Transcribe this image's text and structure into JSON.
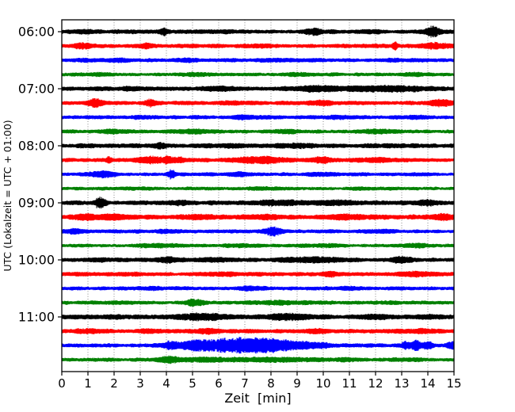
{
  "window": {
    "background": "#ffffff"
  },
  "chart_data": {
    "type": "line",
    "subtype": "seismogram-helicorder-dayplot",
    "title": "",
    "xlabel": "Zeit  [min]",
    "ylabel": "UTC (Lokalzeit = UTC + 01:00)",
    "xlim": [
      0,
      15
    ],
    "minutes_per_line": 15,
    "x_ticks": [
      "0",
      "1",
      "2",
      "3",
      "4",
      "5",
      "6",
      "7",
      "8",
      "9",
      "10",
      "11",
      "12",
      "13",
      "14",
      "15"
    ],
    "grid": {
      "show": true,
      "style": "dotted-vertical",
      "color": "#7a7a7a",
      "at_minutes": [
        1,
        2,
        3,
        4,
        5,
        6,
        7,
        8,
        9,
        10,
        11,
        12,
        13,
        14
      ]
    },
    "axis_color": "#000000",
    "trace_color_cycle": [
      "#000000",
      "#ff0000",
      "#0000ff",
      "#008000"
    ],
    "hour_labels": [
      {
        "label": "06:00",
        "row": 0
      },
      {
        "label": "07:00",
        "row": 4
      },
      {
        "label": "08:00",
        "row": 8
      },
      {
        "label": "09:00",
        "row": 12
      },
      {
        "label": "10:00",
        "row": 16
      },
      {
        "label": "11:00",
        "row": 20
      }
    ],
    "traces": [
      {
        "time": "06:00",
        "color": "#000000",
        "base_amp": 2.3,
        "events": [
          [
            1.0,
            0.3,
            0.7
          ],
          [
            3.9,
            0.12,
            2.8
          ],
          [
            6.6,
            0.4,
            0.7
          ],
          [
            9.6,
            0.25,
            2.2
          ],
          [
            11.8,
            0.3,
            0.9
          ],
          [
            14.2,
            0.18,
            4.6
          ]
        ]
      },
      {
        "time": "06:15",
        "color": "#ff0000",
        "base_amp": 2.2,
        "events": [
          [
            0.8,
            0.25,
            2.2
          ],
          [
            3.2,
            0.15,
            2.0
          ],
          [
            7.5,
            0.4,
            0.9
          ],
          [
            12.75,
            0.06,
            4.2
          ],
          [
            14.3,
            0.35,
            2.4
          ]
        ]
      },
      {
        "time": "06:30",
        "color": "#0000ff",
        "base_amp": 2.0,
        "events": [
          [
            0.9,
            0.3,
            1.3
          ],
          [
            2.2,
            0.3,
            1.0
          ],
          [
            4.8,
            0.3,
            1.2
          ],
          [
            8.2,
            0.4,
            1.0
          ],
          [
            12.8,
            0.3,
            1.2
          ]
        ]
      },
      {
        "time": "06:45",
        "color": "#008000",
        "base_amp": 1.9,
        "events": [
          [
            1.5,
            0.3,
            1.0
          ],
          [
            5.2,
            0.35,
            1.2
          ],
          [
            9.0,
            0.3,
            1.0
          ],
          [
            13.5,
            0.3,
            0.9
          ]
        ]
      },
      {
        "time": "07:00",
        "color": "#000000",
        "base_amp": 2.3,
        "events": [
          [
            2.5,
            0.4,
            0.8
          ],
          [
            6.0,
            0.5,
            1.0
          ],
          [
            9.8,
            0.8,
            1.7
          ],
          [
            12.5,
            1.2,
            2.0
          ]
        ]
      },
      {
        "time": "07:15",
        "color": "#ff0000",
        "base_amp": 2.2,
        "events": [
          [
            1.25,
            0.2,
            3.2
          ],
          [
            3.4,
            0.15,
            2.8
          ],
          [
            6.5,
            0.3,
            1.0
          ],
          [
            10.0,
            0.3,
            1.7
          ],
          [
            14.45,
            0.25,
            3.4
          ]
        ]
      },
      {
        "time": "07:30",
        "color": "#0000ff",
        "base_amp": 2.0,
        "events": [
          [
            3.0,
            0.4,
            1.0
          ],
          [
            7.0,
            0.4,
            1.2
          ],
          [
            10.5,
            0.4,
            1.0
          ],
          [
            13.5,
            0.4,
            1.2
          ]
        ]
      },
      {
        "time": "07:45",
        "color": "#008000",
        "base_amp": 1.9,
        "events": [
          [
            2.0,
            0.3,
            1.2
          ],
          [
            5.0,
            0.5,
            1.4
          ],
          [
            8.5,
            0.4,
            1.0
          ],
          [
            12.0,
            0.6,
            1.2
          ]
        ]
      },
      {
        "time": "08:00",
        "color": "#000000",
        "base_amp": 2.3,
        "events": [
          [
            1.0,
            0.3,
            0.8
          ],
          [
            3.8,
            0.2,
            2.6
          ],
          [
            6.5,
            0.4,
            1.0
          ],
          [
            9.0,
            0.6,
            1.5
          ],
          [
            12.5,
            0.4,
            1.0
          ]
        ]
      },
      {
        "time": "08:15",
        "color": "#ff0000",
        "base_amp": 2.2,
        "events": [
          [
            1.8,
            0.08,
            2.2
          ],
          [
            3.7,
            0.55,
            3.2
          ],
          [
            7.6,
            0.7,
            2.6
          ],
          [
            9.9,
            0.25,
            2.2
          ],
          [
            12.0,
            0.4,
            1.2
          ]
        ]
      },
      {
        "time": "08:30",
        "color": "#0000ff",
        "base_amp": 2.0,
        "events": [
          [
            1.5,
            0.4,
            2.4
          ],
          [
            4.2,
            0.1,
            4.2
          ],
          [
            6.8,
            0.3,
            1.4
          ],
          [
            10.0,
            0.4,
            1.0
          ]
        ]
      },
      {
        "time": "08:45",
        "color": "#008000",
        "base_amp": 1.8,
        "events": [
          [
            3.0,
            0.4,
            0.7
          ],
          [
            7.5,
            0.5,
            0.7
          ],
          [
            11.5,
            0.4,
            0.7
          ]
        ]
      },
      {
        "time": "09:00",
        "color": "#000000",
        "base_amp": 2.3,
        "events": [
          [
            1.45,
            0.15,
            4.6
          ],
          [
            4.5,
            0.4,
            1.0
          ],
          [
            8.3,
            0.8,
            1.7
          ],
          [
            10.6,
            0.5,
            1.7
          ],
          [
            14.0,
            0.3,
            1.9
          ]
        ]
      },
      {
        "time": "09:15",
        "color": "#ff0000",
        "base_amp": 2.5,
        "events": [
          [
            0.8,
            0.4,
            1.7
          ],
          [
            2.0,
            0.4,
            1.5
          ],
          [
            5.2,
            0.5,
            1.5
          ],
          [
            8.0,
            0.4,
            1.2
          ],
          [
            11.0,
            0.5,
            1.4
          ],
          [
            14.6,
            0.3,
            2.2
          ]
        ]
      },
      {
        "time": "09:30",
        "color": "#0000ff",
        "base_amp": 2.0,
        "events": [
          [
            0.5,
            0.25,
            2.0
          ],
          [
            4.0,
            0.4,
            1.0
          ],
          [
            8.1,
            0.22,
            3.8
          ],
          [
            12.2,
            0.4,
            1.2
          ]
        ]
      },
      {
        "time": "09:45",
        "color": "#008000",
        "base_amp": 1.9,
        "events": [
          [
            3.5,
            0.5,
            1.2
          ],
          [
            6.8,
            0.5,
            1.2
          ],
          [
            10.2,
            0.4,
            1.2
          ],
          [
            13.6,
            0.35,
            1.5
          ]
        ]
      },
      {
        "time": "10:00",
        "color": "#000000",
        "base_amp": 2.3,
        "events": [
          [
            1.5,
            0.4,
            1.0
          ],
          [
            4.0,
            0.25,
            2.0
          ],
          [
            6.0,
            0.4,
            1.2
          ],
          [
            9.6,
            0.7,
            1.7
          ],
          [
            13.0,
            0.25,
            2.4
          ]
        ]
      },
      {
        "time": "10:15",
        "color": "#ff0000",
        "base_amp": 2.2,
        "events": [
          [
            2.5,
            0.4,
            0.8
          ],
          [
            6.0,
            0.4,
            1.0
          ],
          [
            10.3,
            0.2,
            1.9
          ],
          [
            13.5,
            0.5,
            1.5
          ]
        ]
      },
      {
        "time": "10:30",
        "color": "#0000ff",
        "base_amp": 2.0,
        "events": [
          [
            3.5,
            0.4,
            0.8
          ],
          [
            7.2,
            0.5,
            1.0
          ],
          [
            11.0,
            0.4,
            0.8
          ]
        ]
      },
      {
        "time": "10:45",
        "color": "#008000",
        "base_amp": 1.9,
        "events": [
          [
            2.0,
            0.4,
            0.8
          ],
          [
            5.1,
            0.25,
            2.8
          ],
          [
            8.5,
            0.9,
            1.3
          ],
          [
            12.5,
            0.5,
            0.8
          ]
        ]
      },
      {
        "time": "11:00",
        "color": "#000000",
        "base_amp": 2.4,
        "events": [
          [
            2.0,
            0.4,
            1.0
          ],
          [
            5.4,
            0.7,
            2.4
          ],
          [
            8.6,
            0.6,
            2.0
          ],
          [
            12.1,
            0.4,
            1.5
          ],
          [
            14.0,
            0.3,
            1.2
          ]
        ]
      },
      {
        "time": "11:15",
        "color": "#ff0000",
        "base_amp": 2.2,
        "events": [
          [
            1.0,
            0.3,
            1.7
          ],
          [
            3.3,
            0.3,
            1.2
          ],
          [
            5.6,
            0.3,
            1.5
          ],
          [
            9.8,
            0.3,
            1.5
          ],
          [
            13.8,
            0.35,
            1.5
          ]
        ]
      },
      {
        "time": "11:30",
        "color": "#0000ff",
        "base_amp": 2.2,
        "events": [
          [
            4.15,
            0.15,
            3.2
          ],
          [
            5.0,
            0.4,
            2.6
          ],
          [
            6.3,
            0.9,
            5.8
          ],
          [
            7.6,
            0.6,
            4.8
          ],
          [
            8.6,
            0.5,
            3.0
          ],
          [
            9.6,
            0.6,
            1.9
          ],
          [
            13.15,
            0.12,
            3.0
          ],
          [
            13.55,
            0.15,
            3.8
          ],
          [
            14.0,
            0.15,
            3.2
          ],
          [
            14.9,
            0.12,
            3.0
          ]
        ]
      },
      {
        "time": "11:45",
        "color": "#008000",
        "base_amp": 2.0,
        "events": [
          [
            4.1,
            0.25,
            1.9
          ],
          [
            5.6,
            1.2,
            1.5
          ],
          [
            8.6,
            0.9,
            1.4
          ],
          [
            11.0,
            0.5,
            0.9
          ],
          [
            13.0,
            0.4,
            1.0
          ]
        ]
      }
    ]
  }
}
